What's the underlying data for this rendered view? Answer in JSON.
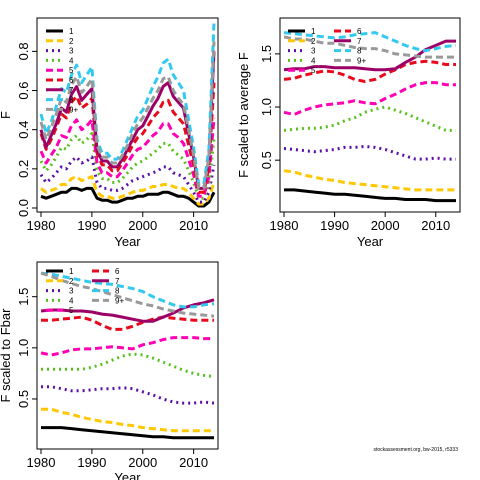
{
  "colors": {
    "1": "#000000",
    "2": "#ffc800",
    "3": "#5b0fa8",
    "4": "#55c11a",
    "5": "#ff00b4",
    "6": "#e80a1c",
    "7": "#9c0066",
    "8": "#33c9ee",
    "9+": "#999999"
  },
  "styles": {
    "1": "solid",
    "2": "dashed",
    "3": "dotted",
    "4": "dotted",
    "5": "dashed",
    "6": "dashed",
    "7": "solid",
    "8": "dashed",
    "9+": "dashed"
  },
  "credit": "stockassessment.org, bw-2015, r5333",
  "chart_data": [
    {
      "type": "line",
      "xlabel": "Year",
      "ylabel": "F",
      "xlim": [
        1980,
        2014
      ],
      "ylim": [
        0,
        0.95
      ],
      "xticks": [
        1980,
        1990,
        2000,
        2010
      ],
      "yticks": [
        0.0,
        0.2,
        0.4,
        0.6,
        0.8
      ],
      "legend": "top-left",
      "x": [
        1980,
        1981,
        1982,
        1983,
        1984,
        1985,
        1986,
        1987,
        1988,
        1989,
        1990,
        1991,
        1992,
        1993,
        1994,
        1995,
        1996,
        1997,
        1998,
        1999,
        2000,
        2001,
        2002,
        2003,
        2004,
        2005,
        2006,
        2007,
        2008,
        2009,
        2010,
        2011,
        2012,
        2013,
        2014
      ],
      "series": [
        {
          "name": "1",
          "values": [
            0.06,
            0.05,
            0.06,
            0.07,
            0.08,
            0.08,
            0.1,
            0.1,
            0.09,
            0.1,
            0.1,
            0.05,
            0.04,
            0.04,
            0.03,
            0.03,
            0.04,
            0.05,
            0.05,
            0.06,
            0.06,
            0.07,
            0.07,
            0.07,
            0.08,
            0.08,
            0.07,
            0.06,
            0.06,
            0.05,
            0.03,
            0.01,
            0.01,
            0.03,
            0.08
          ]
        },
        {
          "name": "2",
          "values": [
            0.1,
            0.08,
            0.09,
            0.1,
            0.12,
            0.12,
            0.15,
            0.16,
            0.14,
            0.15,
            0.16,
            0.08,
            0.06,
            0.06,
            0.05,
            0.05,
            0.06,
            0.07,
            0.08,
            0.09,
            0.09,
            0.1,
            0.11,
            0.11,
            0.12,
            0.12,
            0.11,
            0.1,
            0.1,
            0.08,
            0.05,
            0.02,
            0.02,
            0.05,
            0.13
          ]
        },
        {
          "name": "3",
          "values": [
            0.17,
            0.13,
            0.15,
            0.18,
            0.21,
            0.2,
            0.24,
            0.26,
            0.23,
            0.24,
            0.26,
            0.13,
            0.1,
            0.1,
            0.09,
            0.09,
            0.1,
            0.12,
            0.14,
            0.15,
            0.16,
            0.17,
            0.18,
            0.19,
            0.21,
            0.21,
            0.18,
            0.17,
            0.16,
            0.12,
            0.08,
            0.03,
            0.03,
            0.08,
            0.22
          ]
        },
        {
          "name": "4",
          "values": [
            0.24,
            0.19,
            0.22,
            0.26,
            0.31,
            0.3,
            0.35,
            0.37,
            0.33,
            0.35,
            0.38,
            0.19,
            0.15,
            0.15,
            0.13,
            0.13,
            0.15,
            0.18,
            0.21,
            0.23,
            0.24,
            0.26,
            0.28,
            0.3,
            0.33,
            0.33,
            0.29,
            0.27,
            0.25,
            0.19,
            0.13,
            0.05,
            0.05,
            0.12,
            0.35
          ]
        },
        {
          "name": "5",
          "values": [
            0.29,
            0.23,
            0.27,
            0.31,
            0.37,
            0.36,
            0.42,
            0.45,
            0.4,
            0.42,
            0.45,
            0.23,
            0.18,
            0.18,
            0.16,
            0.16,
            0.19,
            0.23,
            0.27,
            0.3,
            0.31,
            0.34,
            0.37,
            0.39,
            0.43,
            0.43,
            0.38,
            0.36,
            0.33,
            0.25,
            0.17,
            0.06,
            0.06,
            0.16,
            0.46
          ]
        },
        {
          "name": "6",
          "values": [
            0.38,
            0.3,
            0.35,
            0.41,
            0.48,
            0.46,
            0.54,
            0.57,
            0.51,
            0.53,
            0.56,
            0.28,
            0.22,
            0.22,
            0.19,
            0.19,
            0.23,
            0.27,
            0.32,
            0.36,
            0.38,
            0.42,
            0.46,
            0.49,
            0.54,
            0.55,
            0.49,
            0.46,
            0.43,
            0.32,
            0.22,
            0.08,
            0.08,
            0.21,
            0.64
          ]
        },
        {
          "name": "7",
          "values": [
            0.4,
            0.31,
            0.37,
            0.43,
            0.51,
            0.49,
            0.58,
            0.62,
            0.55,
            0.58,
            0.61,
            0.3,
            0.24,
            0.24,
            0.21,
            0.21,
            0.25,
            0.3,
            0.35,
            0.4,
            0.42,
            0.47,
            0.52,
            0.56,
            0.62,
            0.64,
            0.57,
            0.54,
            0.51,
            0.38,
            0.26,
            0.1,
            0.1,
            0.25,
            0.8
          ]
        },
        {
          "name": "8",
          "values": [
            0.48,
            0.38,
            0.44,
            0.52,
            0.61,
            0.59,
            0.68,
            0.73,
            0.64,
            0.68,
            0.72,
            0.35,
            0.28,
            0.28,
            0.25,
            0.25,
            0.29,
            0.35,
            0.41,
            0.47,
            0.5,
            0.56,
            0.62,
            0.67,
            0.74,
            0.76,
            0.68,
            0.64,
            0.6,
            0.45,
            0.31,
            0.12,
            0.12,
            0.3,
            0.95
          ]
        },
        {
          "name": "9+",
          "values": [
            0.44,
            0.35,
            0.41,
            0.48,
            0.56,
            0.54,
            0.63,
            0.67,
            0.59,
            0.62,
            0.66,
            0.32,
            0.26,
            0.26,
            0.23,
            0.23,
            0.27,
            0.32,
            0.38,
            0.43,
            0.46,
            0.51,
            0.56,
            0.6,
            0.66,
            0.67,
            0.6,
            0.56,
            0.53,
            0.4,
            0.27,
            0.1,
            0.1,
            0.26,
            0.85
          ]
        }
      ]
    },
    {
      "type": "line",
      "xlabel": "Year",
      "ylabel": "F scaled to average F",
      "xlim": [
        1980,
        2014
      ],
      "ylim": [
        0.05,
        1.8
      ],
      "xticks": [
        1980,
        1990,
        2000,
        2010
      ],
      "yticks": [
        0.5,
        1.0,
        1.5
      ],
      "legend": "top-left",
      "x": [
        1980,
        1982,
        1984,
        1986,
        1988,
        1990,
        1992,
        1994,
        1996,
        1998,
        2000,
        2002,
        2004,
        2006,
        2008,
        2010,
        2012,
        2014
      ],
      "series": [
        {
          "name": "1",
          "values": [
            0.22,
            0.22,
            0.21,
            0.2,
            0.19,
            0.18,
            0.18,
            0.17,
            0.16,
            0.15,
            0.14,
            0.14,
            0.13,
            0.13,
            0.13,
            0.12,
            0.12,
            0.12
          ]
        },
        {
          "name": "2",
          "values": [
            0.4,
            0.39,
            0.36,
            0.34,
            0.32,
            0.31,
            0.29,
            0.28,
            0.27,
            0.26,
            0.25,
            0.24,
            0.23,
            0.22,
            0.22,
            0.22,
            0.22,
            0.22
          ]
        },
        {
          "name": "3",
          "values": [
            0.61,
            0.6,
            0.59,
            0.58,
            0.59,
            0.6,
            0.62,
            0.62,
            0.63,
            0.62,
            0.6,
            0.57,
            0.54,
            0.51,
            0.51,
            0.52,
            0.51,
            0.51
          ]
        },
        {
          "name": "4",
          "values": [
            0.78,
            0.79,
            0.8,
            0.8,
            0.81,
            0.83,
            0.87,
            0.9,
            0.95,
            0.98,
            1.0,
            0.97,
            0.94,
            0.9,
            0.86,
            0.82,
            0.78,
            0.78
          ]
        },
        {
          "name": "5",
          "values": [
            0.95,
            0.93,
            0.97,
            1.0,
            1.02,
            1.03,
            1.04,
            1.06,
            1.04,
            1.03,
            1.08,
            1.12,
            1.17,
            1.21,
            1.23,
            1.23,
            1.21,
            1.21
          ]
        },
        {
          "name": "6",
          "values": [
            1.26,
            1.27,
            1.3,
            1.32,
            1.34,
            1.33,
            1.3,
            1.26,
            1.24,
            1.26,
            1.31,
            1.35,
            1.4,
            1.42,
            1.43,
            1.42,
            1.4,
            1.4
          ]
        },
        {
          "name": "7",
          "values": [
            1.35,
            1.36,
            1.36,
            1.38,
            1.38,
            1.37,
            1.37,
            1.37,
            1.36,
            1.35,
            1.35,
            1.36,
            1.42,
            1.47,
            1.54,
            1.58,
            1.62,
            1.62
          ]
        },
        {
          "name": "8",
          "values": [
            1.7,
            1.69,
            1.68,
            1.67,
            1.66,
            1.65,
            1.66,
            1.68,
            1.69,
            1.7,
            1.66,
            1.62,
            1.58,
            1.55,
            1.53,
            1.55,
            1.57,
            1.58
          ]
        },
        {
          "name": "9+",
          "values": [
            1.66,
            1.64,
            1.64,
            1.62,
            1.6,
            1.6,
            1.58,
            1.56,
            1.55,
            1.55,
            1.53,
            1.5,
            1.49,
            1.48,
            1.47,
            1.47,
            1.47,
            1.47
          ]
        }
      ]
    },
    {
      "type": "line",
      "xlabel": "Year",
      "ylabel": "F scaled to Fbar",
      "xlim": [
        1980,
        2014
      ],
      "ylim": [
        0.05,
        1.8
      ],
      "xticks": [
        1980,
        1990,
        2000,
        2010
      ],
      "yticks": [
        0.5,
        1.0,
        1.5
      ],
      "legend": "top-left",
      "x": [
        1980,
        1982,
        1984,
        1986,
        1988,
        1990,
        1992,
        1994,
        1996,
        1998,
        2000,
        2002,
        2004,
        2006,
        2008,
        2010,
        2012,
        2014
      ],
      "series": [
        {
          "name": "1",
          "values": [
            0.22,
            0.22,
            0.22,
            0.21,
            0.2,
            0.19,
            0.18,
            0.17,
            0.16,
            0.15,
            0.14,
            0.13,
            0.13,
            0.12,
            0.12,
            0.12,
            0.12,
            0.12
          ]
        },
        {
          "name": "2",
          "values": [
            0.4,
            0.4,
            0.37,
            0.35,
            0.32,
            0.3,
            0.28,
            0.27,
            0.25,
            0.24,
            0.22,
            0.21,
            0.2,
            0.19,
            0.19,
            0.19,
            0.19,
            0.19
          ]
        },
        {
          "name": "3",
          "values": [
            0.62,
            0.62,
            0.6,
            0.58,
            0.58,
            0.59,
            0.6,
            0.6,
            0.61,
            0.6,
            0.57,
            0.54,
            0.5,
            0.47,
            0.46,
            0.46,
            0.47,
            0.46
          ]
        },
        {
          "name": "4",
          "values": [
            0.79,
            0.79,
            0.79,
            0.79,
            0.79,
            0.81,
            0.84,
            0.88,
            0.92,
            0.94,
            0.93,
            0.9,
            0.86,
            0.82,
            0.78,
            0.75,
            0.73,
            0.72
          ]
        },
        {
          "name": "5",
          "values": [
            0.95,
            0.93,
            0.95,
            0.98,
            0.99,
            0.99,
            1.0,
            1.01,
            1.0,
            0.99,
            1.03,
            1.05,
            1.08,
            1.1,
            1.1,
            1.1,
            1.09,
            1.09
          ]
        },
        {
          "name": "6",
          "values": [
            1.27,
            1.27,
            1.28,
            1.29,
            1.3,
            1.27,
            1.22,
            1.18,
            1.18,
            1.21,
            1.25,
            1.28,
            1.3,
            1.29,
            1.28,
            1.27,
            1.27,
            1.27
          ]
        },
        {
          "name": "7",
          "values": [
            1.36,
            1.37,
            1.37,
            1.36,
            1.36,
            1.35,
            1.33,
            1.32,
            1.3,
            1.28,
            1.26,
            1.26,
            1.3,
            1.34,
            1.39,
            1.42,
            1.44,
            1.47
          ]
        },
        {
          "name": "8",
          "values": [
            1.73,
            1.72,
            1.7,
            1.68,
            1.66,
            1.64,
            1.63,
            1.62,
            1.6,
            1.58,
            1.55,
            1.5,
            1.46,
            1.42,
            1.4,
            1.4,
            1.42,
            1.43
          ]
        },
        {
          "name": "9+",
          "values": [
            1.73,
            1.7,
            1.66,
            1.63,
            1.6,
            1.58,
            1.55,
            1.52,
            1.49,
            1.46,
            1.43,
            1.41,
            1.38,
            1.36,
            1.34,
            1.33,
            1.32,
            1.31
          ]
        }
      ]
    }
  ]
}
